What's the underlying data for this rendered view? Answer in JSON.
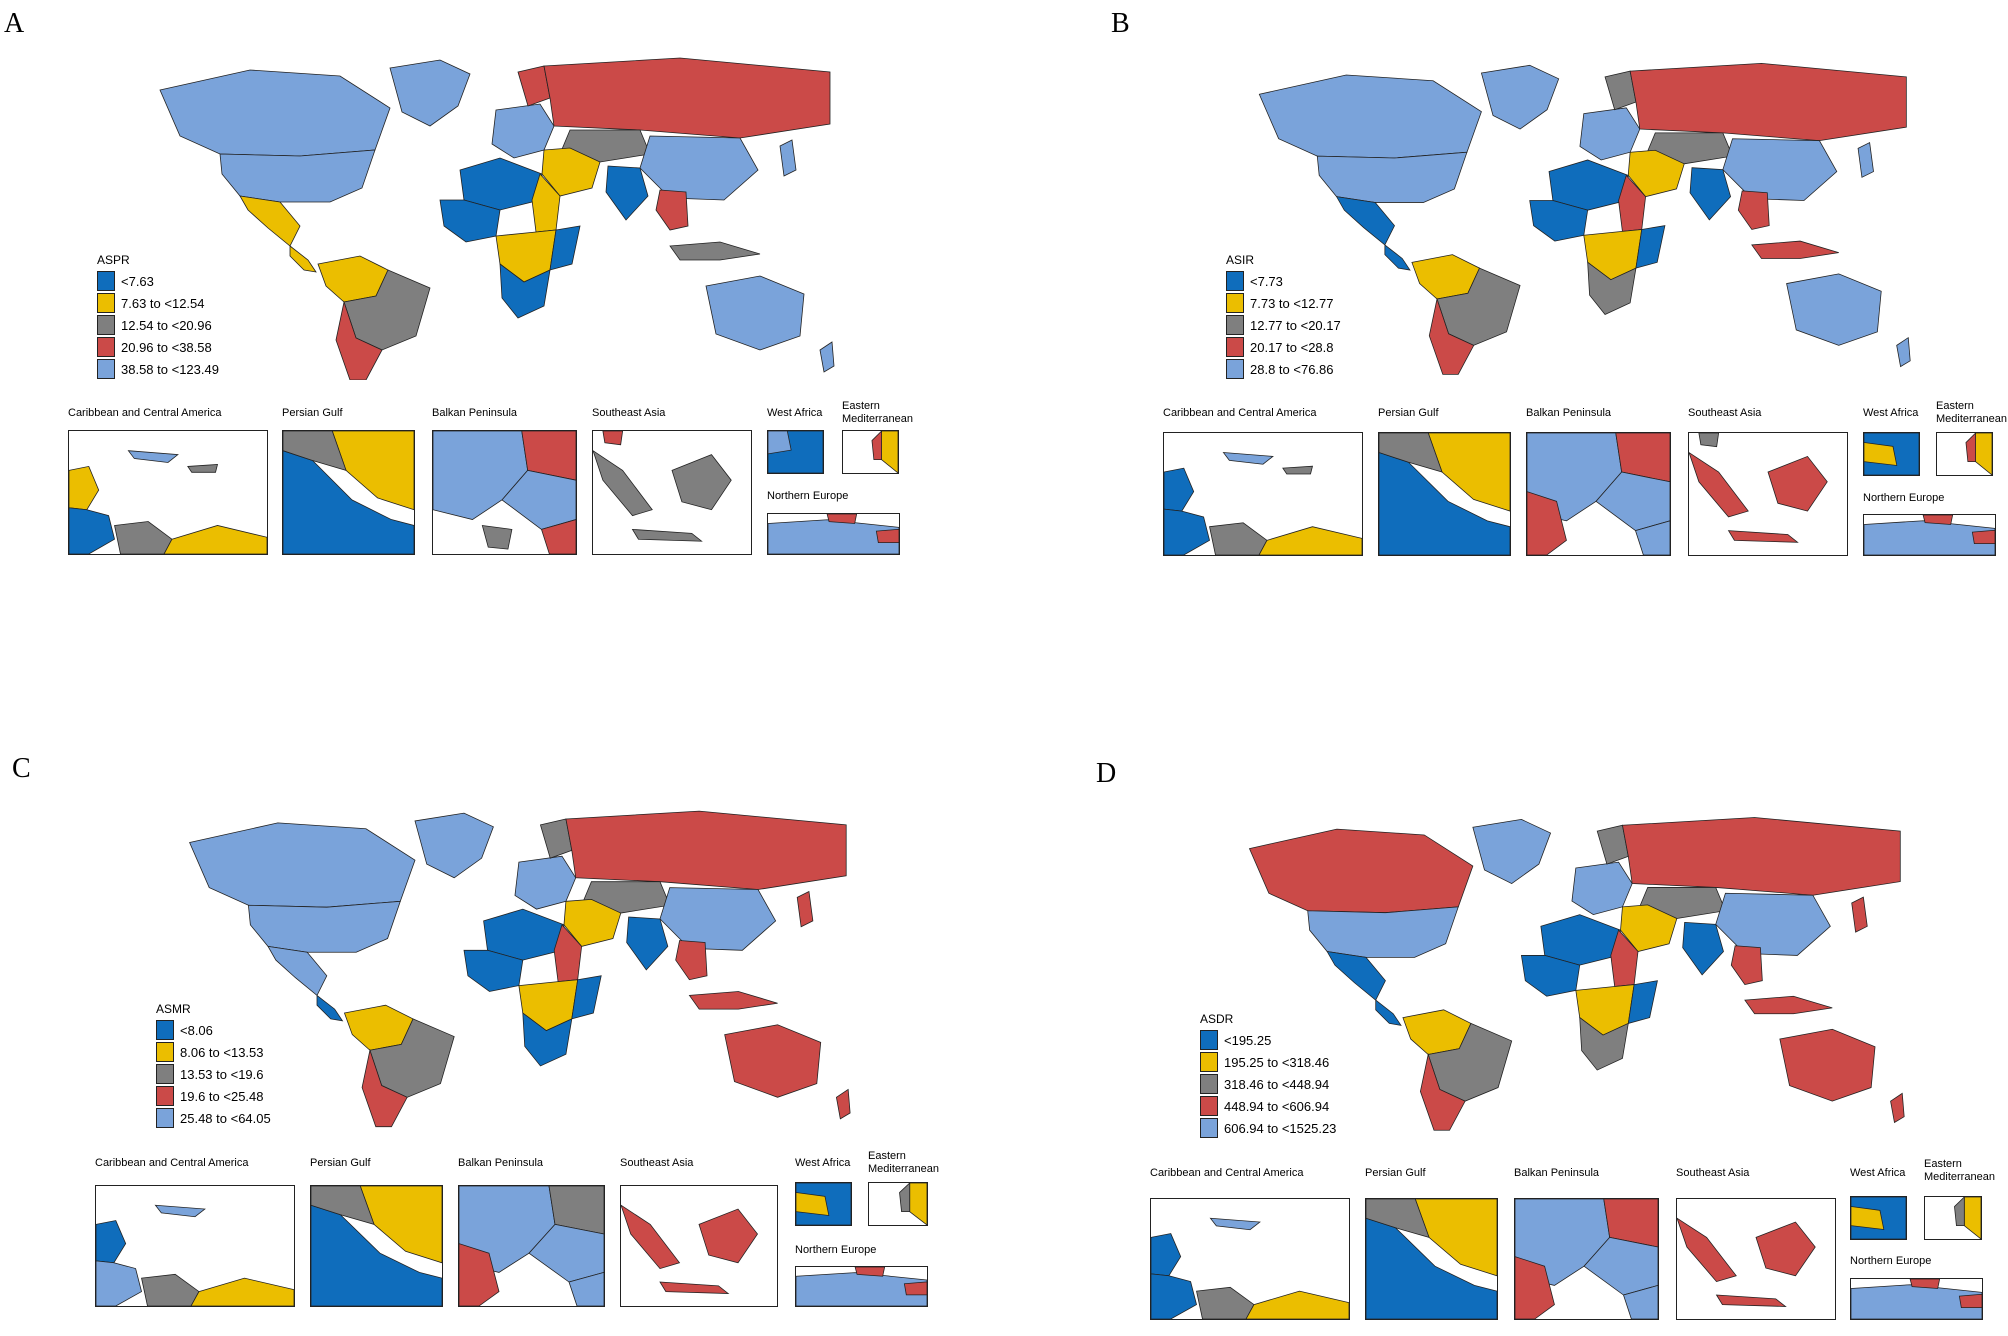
{
  "colors": {
    "c1": "#0F6DBC",
    "c2": "#EBBE00",
    "c3": "#7F7F7F",
    "c4": "#CB4A48",
    "c5": "#7AA3DA"
  },
  "inset_titles": {
    "caribbean": "Caribbean and Central America",
    "persian": "Persian Gulf",
    "balkan": "Balkan Peninsula",
    "seasia": "Southeast Asia",
    "westafrica": "West Africa",
    "eastmed": "Eastern Mediterranean",
    "northeurope": "Northern Europe"
  },
  "panels": [
    {
      "letter": "A",
      "legend_title": "ASPR",
      "legend": [
        "<7.63",
        "7.63 to <12.54",
        "12.54 to <20.96",
        "20.96 to <38.58",
        "38.58 to <123.49"
      ]
    },
    {
      "letter": "B",
      "legend_title": "ASIR",
      "legend": [
        "<7.73",
        "7.73 to <12.77",
        "12.77 to <20.17",
        "20.17 to <28.8",
        "28.8 to <76.86"
      ]
    },
    {
      "letter": "C",
      "legend_title": "ASMR",
      "legend": [
        "<8.06",
        "8.06 to <13.53",
        "13.53 to <19.6",
        "19.6 to <25.48",
        "25.48 to <64.05"
      ]
    },
    {
      "letter": "D",
      "legend_title": "ASDR",
      "legend": [
        "<195.25",
        "195.25 to <318.46",
        "318.46 to <448.94",
        "448.94 to <606.94",
        "606.94 to <1525.23"
      ]
    }
  ]
}
